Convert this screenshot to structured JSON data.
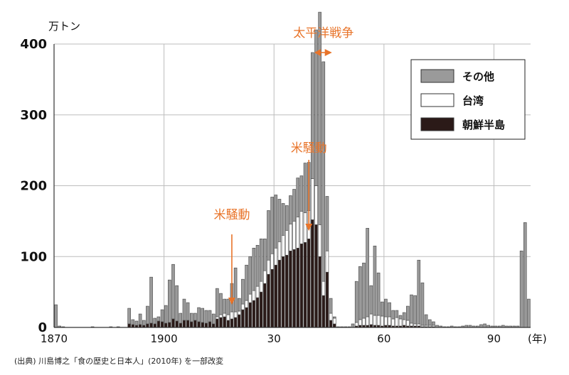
{
  "colors": {
    "other": "#9a9a9a",
    "taiwan": "#ffffff",
    "korea": "#2b1a18",
    "annotation": "#e8742a",
    "grid": "#bdbdbd"
  },
  "chart_data": {
    "type": "bar",
    "stacked": true,
    "unit_label": "万トン",
    "x_suffix": "(年)",
    "ylim": [
      0,
      400
    ],
    "yticks": [
      0,
      100,
      200,
      300,
      400
    ],
    "xticks": [
      {
        "year": 1870,
        "label": "1870"
      },
      {
        "year": 1900,
        "label": "1900"
      },
      {
        "year": 1930,
        "label": "30"
      },
      {
        "year": 1960,
        "label": "60"
      },
      {
        "year": 1990,
        "label": "90"
      }
    ],
    "legend": [
      {
        "key": "other",
        "label": "その他"
      },
      {
        "key": "taiwan",
        "label": "台湾"
      },
      {
        "key": "korea",
        "label": "朝鮮半島"
      }
    ],
    "annotations": [
      {
        "type": "arrow-down",
        "year": 1918,
        "label": "米騒動"
      },
      {
        "type": "arrow-down",
        "year": 1939,
        "label": "米騒動"
      },
      {
        "type": "range",
        "from": 1941,
        "to": 1945,
        "label": "太平洋戦争"
      }
    ],
    "source": "(出典) 川島博之「食の歴史と日本人」(2010年) を一部改変",
    "years": [
      1870,
      1871,
      1872,
      1873,
      1874,
      1875,
      1876,
      1877,
      1878,
      1879,
      1880,
      1881,
      1882,
      1883,
      1884,
      1885,
      1886,
      1887,
      1888,
      1889,
      1890,
      1891,
      1892,
      1893,
      1894,
      1895,
      1896,
      1897,
      1898,
      1899,
      1900,
      1901,
      1902,
      1903,
      1904,
      1905,
      1906,
      1907,
      1908,
      1909,
      1910,
      1911,
      1912,
      1913,
      1914,
      1915,
      1916,
      1917,
      1918,
      1919,
      1920,
      1921,
      1922,
      1923,
      1924,
      1925,
      1926,
      1927,
      1928,
      1929,
      1930,
      1931,
      1932,
      1933,
      1934,
      1935,
      1936,
      1937,
      1938,
      1939,
      1940,
      1941,
      1942,
      1943,
      1944,
      1945,
      1946,
      1947,
      1948,
      1949,
      1950,
      1951,
      1952,
      1953,
      1954,
      1955,
      1956,
      1957,
      1958,
      1959,
      1960,
      1961,
      1962,
      1963,
      1964,
      1965,
      1966,
      1967,
      1968,
      1969,
      1970,
      1971,
      1972,
      1973,
      1974,
      1975,
      1976,
      1977,
      1978,
      1979,
      1980,
      1981,
      1982,
      1983,
      1984,
      1985,
      1986,
      1987,
      1988,
      1989,
      1990,
      1991,
      1992,
      1993,
      1994,
      1995,
      1996,
      1997,
      1998,
      1999
    ],
    "series": [
      {
        "key": "korea",
        "name": "朝鮮半島",
        "values": [
          0,
          0,
          0,
          0,
          0,
          0,
          0,
          0,
          0,
          0,
          0,
          0,
          0,
          0,
          0,
          0,
          0,
          0,
          0,
          0,
          5,
          4,
          3,
          4,
          3,
          5,
          6,
          5,
          9,
          8,
          6,
          7,
          12,
          9,
          6,
          10,
          10,
          8,
          10,
          8,
          7,
          6,
          8,
          5,
          12,
          14,
          15,
          10,
          12,
          14,
          18,
          25,
          28,
          35,
          38,
          42,
          50,
          62,
          75,
          82,
          88,
          95,
          100,
          102,
          108,
          110,
          112,
          118,
          120,
          125,
          152,
          145,
          100,
          45,
          78,
          10,
          5,
          0,
          0,
          0,
          0,
          0,
          2,
          3,
          3,
          3,
          4,
          3,
          3,
          2,
          3,
          3,
          2,
          2,
          2,
          3,
          2,
          2,
          2,
          2,
          1,
          1,
          1,
          1,
          0,
          0,
          0,
          0,
          0,
          0,
          0,
          0,
          0,
          0,
          0,
          0,
          0,
          0,
          0,
          0,
          0,
          0,
          0,
          0,
          0,
          0,
          0,
          0,
          0,
          0
        ]
      },
      {
        "key": "taiwan",
        "name": "台湾",
        "values": [
          0,
          0,
          0,
          0,
          0,
          0,
          0,
          0,
          0,
          0,
          0,
          0,
          0,
          0,
          0,
          0,
          0,
          0,
          0,
          0,
          0,
          0,
          0,
          0,
          0,
          0,
          0,
          0,
          0,
          0,
          0,
          0,
          0,
          0,
          0,
          0,
          0,
          0,
          0,
          0,
          0,
          0,
          0,
          0,
          3,
          4,
          5,
          8,
          10,
          8,
          5,
          8,
          10,
          12,
          14,
          16,
          15,
          18,
          20,
          22,
          24,
          26,
          30,
          35,
          38,
          40,
          44,
          46,
          42,
          40,
          58,
          55,
          45,
          20,
          30,
          10,
          8,
          0,
          0,
          0,
          0,
          0,
          5,
          8,
          10,
          12,
          15,
          14,
          14,
          14,
          12,
          12,
          10,
          12,
          10,
          8,
          8,
          4,
          3,
          3,
          2,
          2,
          2,
          2,
          0,
          0,
          0,
          0,
          0,
          0,
          0,
          0,
          0,
          0,
          0,
          0,
          0,
          0,
          0,
          0,
          0,
          0,
          0,
          0,
          0,
          0,
          0,
          0,
          0,
          0
        ]
      },
      {
        "key": "other",
        "name": "その他",
        "values": [
          32,
          2,
          1,
          0,
          0,
          0,
          0,
          0,
          0,
          0,
          1,
          0,
          0,
          0,
          0,
          1,
          0,
          1,
          0,
          0,
          22,
          7,
          6,
          15,
          7,
          25,
          65,
          8,
          6,
          17,
          25,
          60,
          77,
          50,
          14,
          30,
          25,
          12,
          10,
          20,
          20,
          18,
          16,
          14,
          40,
          30,
          20,
          22,
          40,
          62,
          18,
          35,
          50,
          53,
          60,
          58,
          60,
          45,
          70,
          80,
          75,
          60,
          45,
          35,
          40,
          45,
          55,
          50,
          70,
          68,
          178,
          220,
          300,
          310,
          77,
          21,
          2,
          1,
          1,
          1,
          1,
          5,
          58,
          75,
          78,
          125,
          40,
          98,
          60,
          20,
          25,
          20,
          12,
          10,
          5,
          10,
          20,
          40,
          40,
          90,
          60,
          15,
          8,
          5,
          3,
          2,
          1,
          1,
          2,
          1,
          1,
          2,
          3,
          3,
          2,
          2,
          4,
          5,
          3,
          2,
          2,
          2,
          3,
          2,
          2,
          2,
          2,
          108,
          148,
          40
        ]
      }
    ]
  }
}
